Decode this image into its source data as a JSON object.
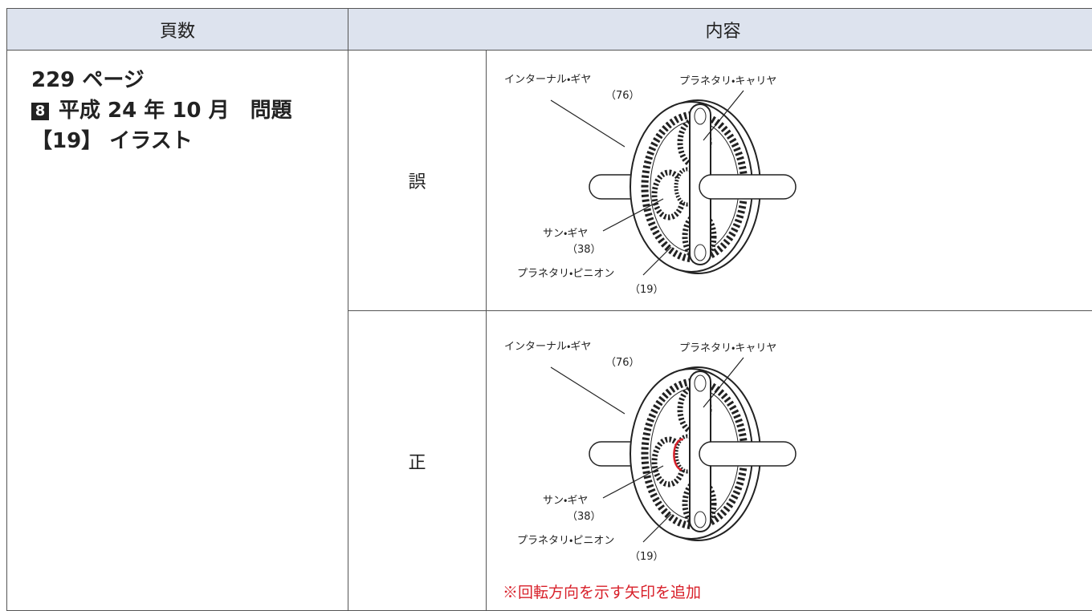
{
  "table": {
    "headers": [
      "頁数",
      "内容"
    ],
    "location": {
      "page": "229 ページ",
      "badge": "8",
      "problem": "平成 24 年 10 月　問題",
      "item": "【19】 イラスト"
    },
    "rows": [
      {
        "label": "誤",
        "diagram": {
          "internal_gear": "インターナル・ギヤ",
          "internal_gear_teeth": "（76）",
          "carrier": "プラネタリ・キャリヤ",
          "sun_gear": "サン・ギヤ",
          "sun_gear_teeth": "（38）",
          "pinion": "プラネタリ・ピニオン",
          "pinion_teeth": "（19）"
        }
      },
      {
        "label": "正",
        "diagram": {
          "internal_gear": "インターナル・ギヤ",
          "internal_gear_teeth": "（76）",
          "carrier": "プラネタリ・キャリヤ",
          "sun_gear": "サン・ギヤ",
          "sun_gear_teeth": "（38）",
          "pinion": "プラネタリ・ピニオン",
          "pinion_teeth": "（19）"
        },
        "note": "※回転方向を示す矢印を追加"
      }
    ]
  }
}
